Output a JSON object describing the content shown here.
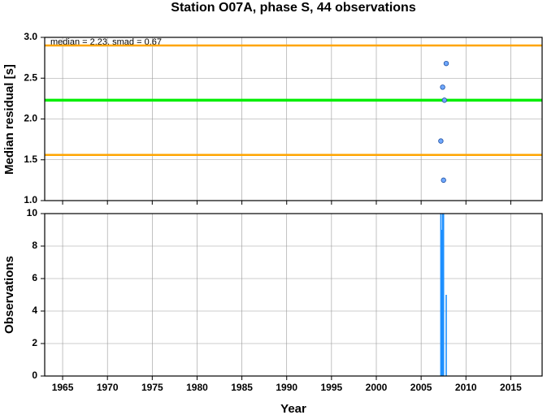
{
  "chart_data": [
    {
      "type": "scatter",
      "title": "Station O07A, phase S, 44 observations",
      "ylabel": "Median residual [s]",
      "annotation": "median = 2.23, smad = 0.67",
      "x": [
        2007.8,
        2007.4,
        2007.6,
        2007.2,
        2007.5
      ],
      "values": [
        2.68,
        2.39,
        2.23,
        1.73,
        1.25
      ],
      "color": "#6fa8ff",
      "hlines": [
        {
          "value": 2.23,
          "color": "#00ee00"
        },
        {
          "value": 2.9,
          "color": "#ffa500"
        },
        {
          "value": 1.56,
          "color": "#ffa500"
        }
      ],
      "xlim": [
        1963,
        2018.5
      ],
      "xticks": [
        1965,
        1970,
        1975,
        1980,
        1985,
        1990,
        1995,
        2000,
        2005,
        2010,
        2015
      ],
      "ylim": [
        1,
        3
      ],
      "yticks": [
        {
          "value": 1,
          "label": "1.0"
        },
        1.5,
        {
          "value": 2,
          "label": "2.0"
        },
        2.5,
        {
          "value": 3,
          "label": "3.0"
        }
      ],
      "grid": true
    },
    {
      "type": "bar",
      "ylabel": "Observations",
      "xlabel": "Year",
      "x": [
        2007.2,
        2007.3,
        2007.4,
        2007.5,
        2007.8
      ],
      "values": [
        10,
        9,
        10,
        10,
        5
      ],
      "color": "#1e90ff",
      "xlim": [
        1963,
        2018.5
      ],
      "xticks": [
        1965,
        1970,
        1975,
        1980,
        1985,
        1990,
        1995,
        2000,
        2005,
        2010,
        2015
      ],
      "ylim": [
        0,
        10
      ],
      "yticks": [
        0,
        2,
        4,
        6,
        8,
        10
      ],
      "grid": true
    }
  ]
}
